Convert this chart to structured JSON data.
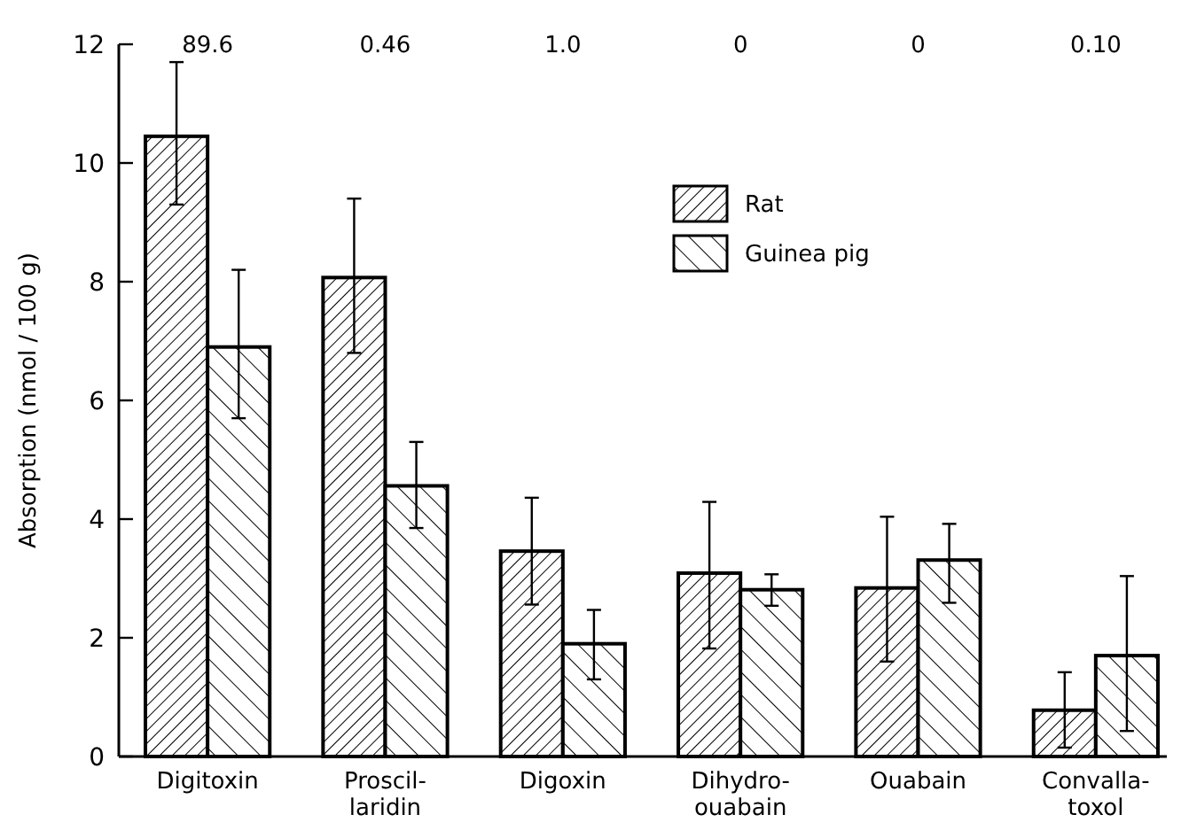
{
  "chart_data": {
    "type": "bar",
    "ylabel": "Absorption (nmol / 100 g)",
    "categories": [
      "Digitoxin",
      "Proscil-\nlaridin",
      "Digoxin",
      "Dihydro-\nouabain",
      "Ouabain",
      "Convalla-\ntoxol"
    ],
    "series": [
      {
        "name": "Rat",
        "color": "#000000",
        "values": [
          10.45,
          8.07,
          3.46,
          3.09,
          2.84,
          0.78
        ],
        "errors": [
          [
            9.3,
            11.7
          ],
          [
            6.8,
            9.4
          ],
          [
            2.56,
            4.36
          ],
          [
            1.82,
            4.29
          ],
          [
            1.6,
            4.04
          ],
          [
            0.15,
            1.42
          ]
        ]
      },
      {
        "name": "Guinea pig",
        "color": "#000000",
        "values": [
          6.9,
          4.56,
          1.9,
          2.81,
          3.31,
          1.7
        ],
        "errors": [
          [
            5.7,
            8.2
          ],
          [
            3.85,
            5.3
          ],
          [
            1.3,
            2.47
          ],
          [
            2.54,
            3.07
          ],
          [
            2.59,
            3.92
          ],
          [
            0.43,
            3.04
          ]
        ]
      }
    ],
    "annotations": [
      "89.6",
      "0.46",
      "1.0",
      "0",
      "0",
      "0.10"
    ],
    "ylim": [
      0,
      12
    ],
    "yticks": [
      0,
      2,
      4,
      6,
      8,
      10,
      12
    ],
    "legend": "top right"
  }
}
